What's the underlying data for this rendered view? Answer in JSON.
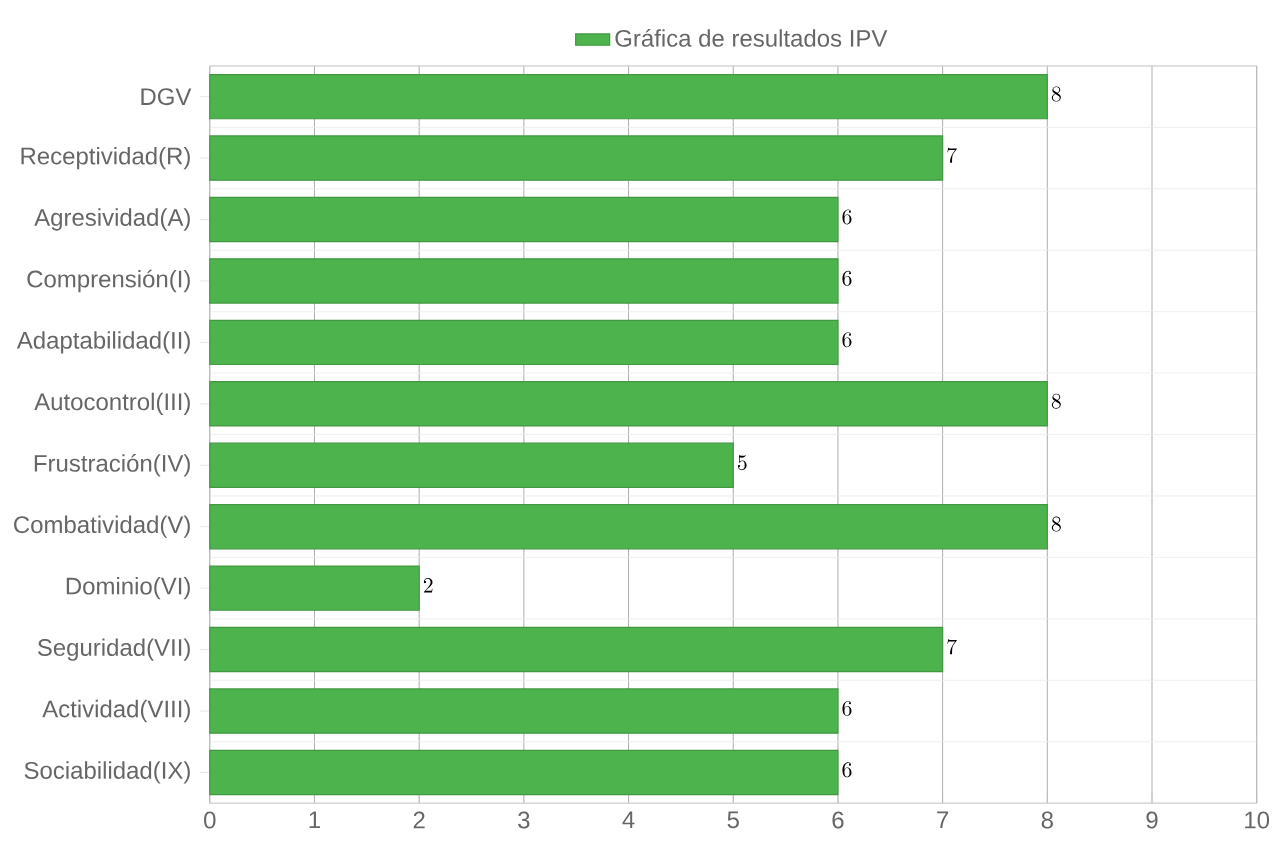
{
  "chart_data": {
    "type": "bar",
    "orientation": "horizontal",
    "categories": [
      "DGV",
      "Receptividad(R)",
      "Agresividad(A)",
      "Comprensión(I)",
      "Adaptabilidad(II)",
      "Autocontrol(III)",
      "Frustración(IV)",
      "Combatividad(V)",
      "Dominio(VI)",
      "Seguridad(VII)",
      "Actividad(VIII)",
      "Sociabilidad(IX)"
    ],
    "series": [
      {
        "name": "Gráfica de resultados IPV",
        "color": "#4db34d",
        "values": [
          8,
          7,
          6,
          6,
          6,
          8,
          5,
          8,
          2,
          7,
          6,
          6
        ]
      }
    ],
    "xlim": [
      0,
      10
    ],
    "xticks": [
      0,
      1,
      2,
      3,
      4,
      5,
      6,
      7,
      8,
      9,
      10
    ],
    "grid": true,
    "legend": "top",
    "data_labels": true
  }
}
